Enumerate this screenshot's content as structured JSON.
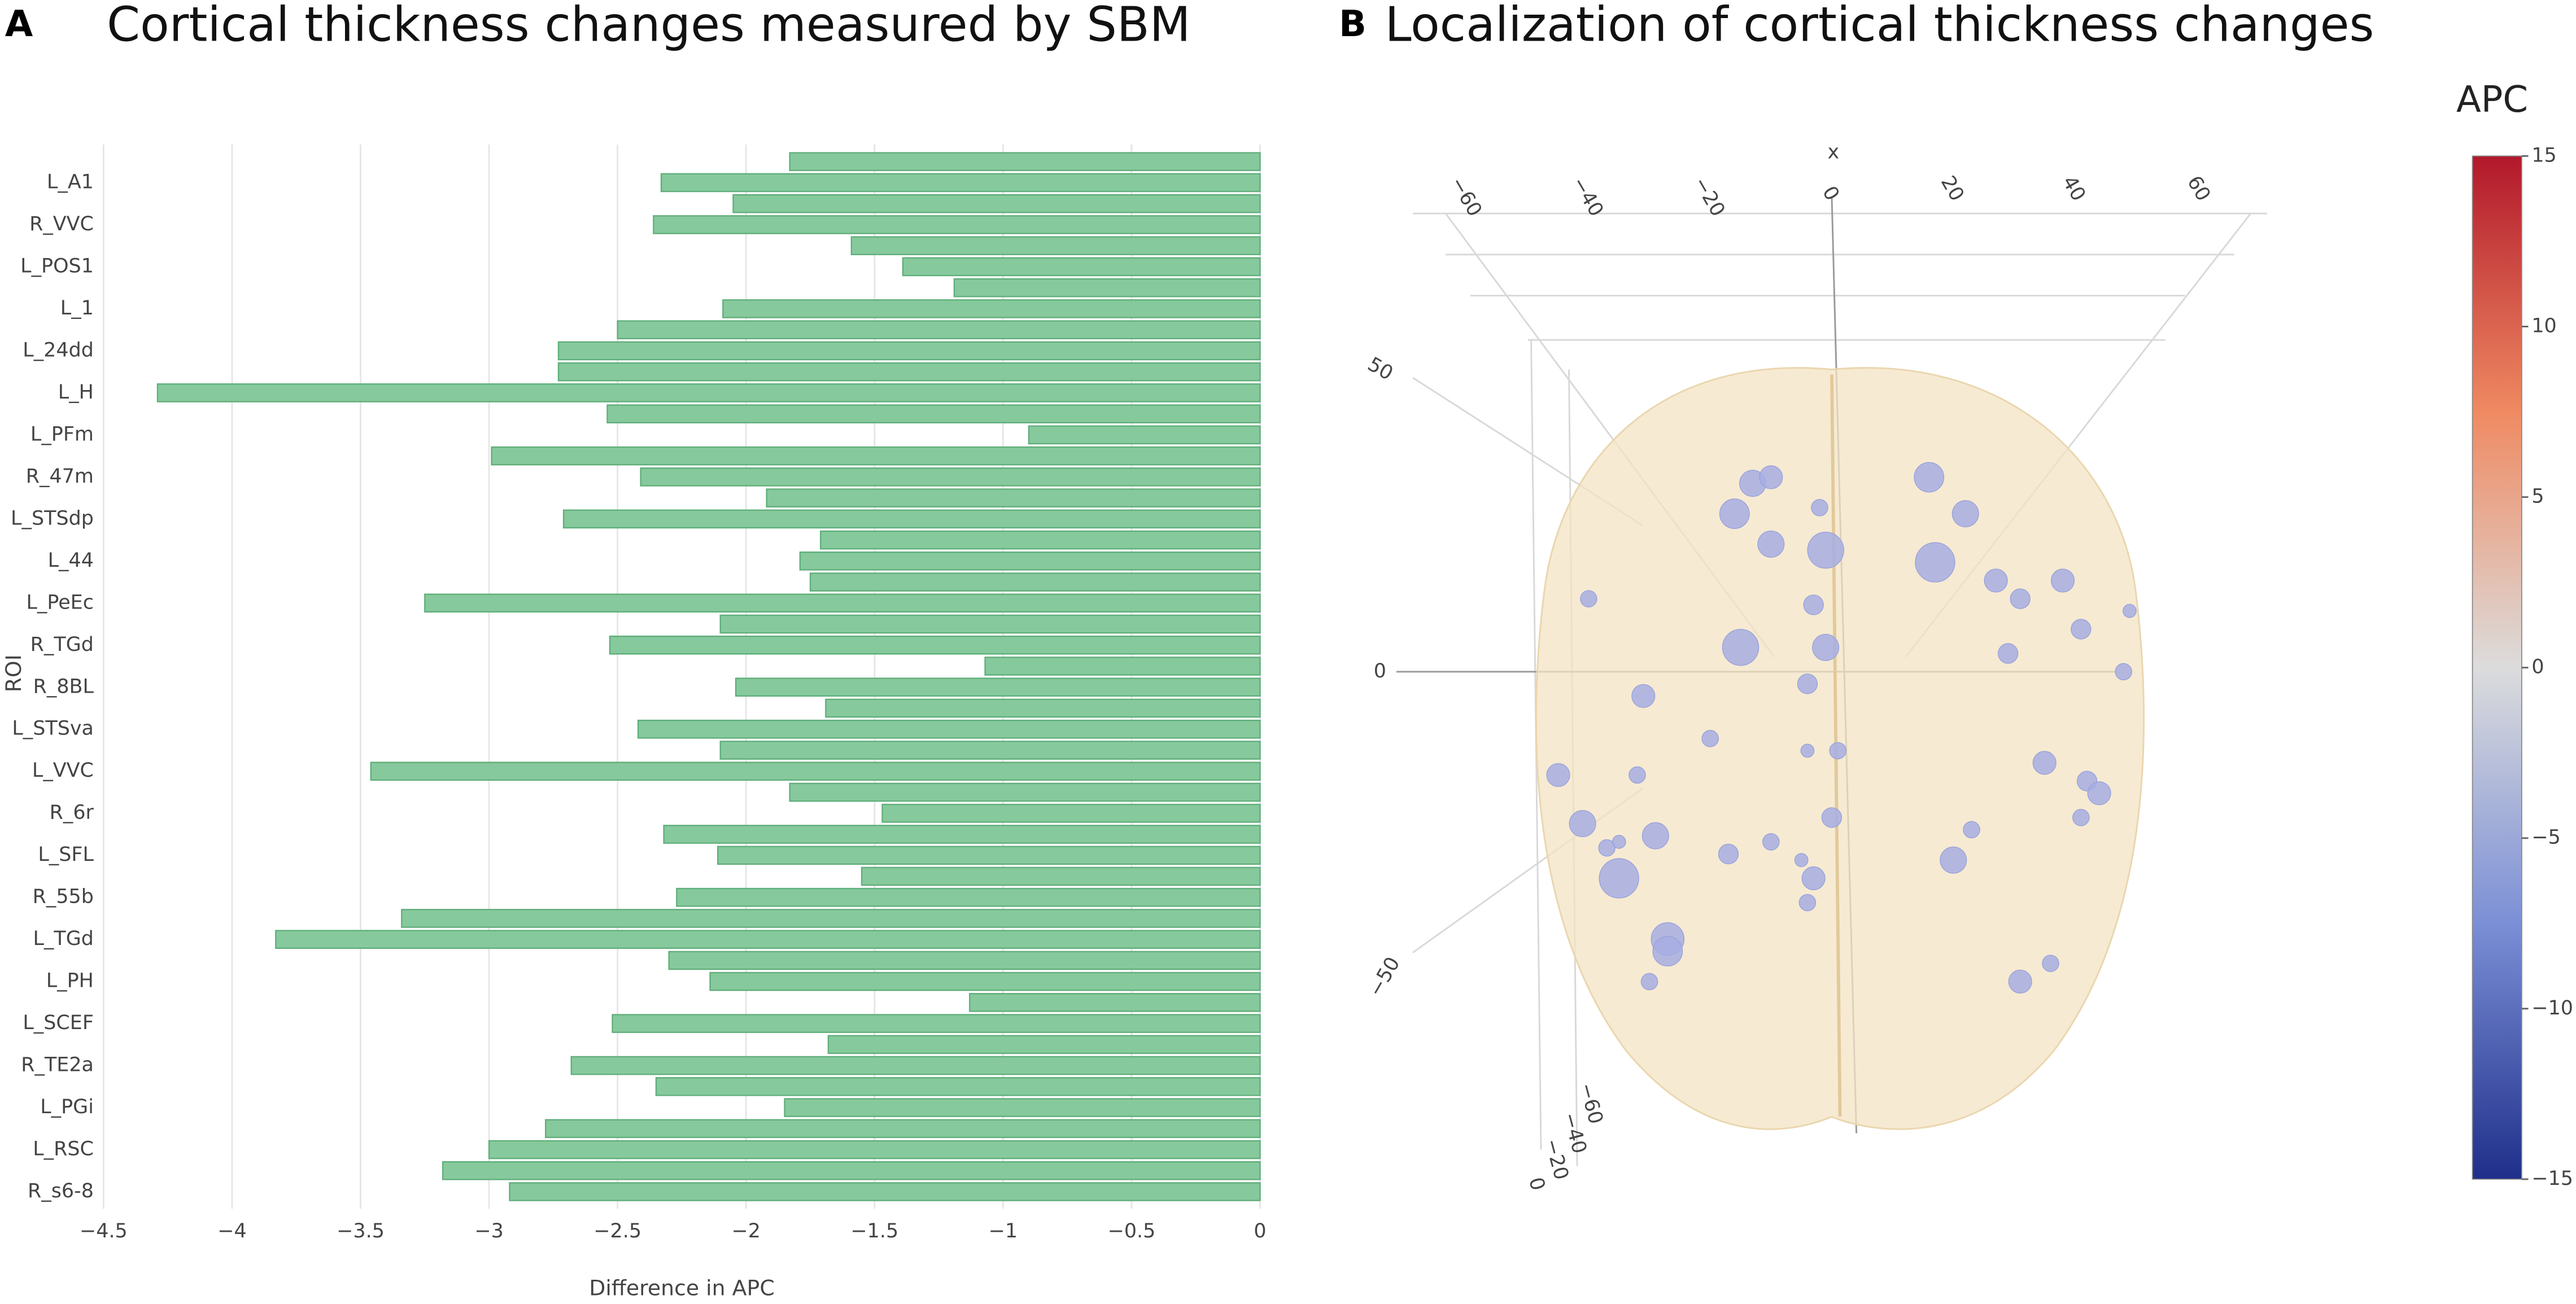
{
  "chart_data": [
    {
      "type": "bar",
      "orientation": "horizontal",
      "panel": "A",
      "title": "Cortical thickness changes measured by SBM",
      "xlabel": "Difference in APC",
      "ylabel": "ROI",
      "categories": [
        null,
        "L_A1",
        null,
        "R_VVC",
        null,
        "L_POS1",
        null,
        "L_1",
        null,
        "L_24dd",
        null,
        "L_H",
        null,
        "L_PFm",
        null,
        "R_47m",
        null,
        "L_STSdp",
        null,
        "L_44",
        null,
        "L_PeEc",
        null,
        "R_TGd",
        null,
        "R_8BL",
        null,
        "L_STSva",
        null,
        "L_VVC",
        null,
        "R_6r",
        null,
        "L_SFL",
        null,
        "R_55b",
        null,
        "L_TGd",
        null,
        "L_PH",
        null,
        "L_SCEF",
        null,
        "R_TE2a",
        null,
        "L_PGi",
        null,
        "L_RSC",
        null,
        "R_s6-8"
      ],
      "values": [
        -1.83,
        -2.33,
        -2.05,
        -2.36,
        -1.59,
        -1.39,
        -1.19,
        -2.09,
        -2.5,
        -2.73,
        -2.73,
        -4.29,
        -2.54,
        -0.9,
        -2.99,
        -2.41,
        -1.92,
        -2.71,
        -1.71,
        -1.79,
        -1.75,
        -3.25,
        -2.1,
        -2.53,
        -1.07,
        -2.04,
        -1.69,
        -2.42,
        -2.1,
        -3.46,
        -1.83,
        -1.47,
        -2.32,
        -2.11,
        -1.55,
        -2.27,
        -3.34,
        -3.83,
        -2.3,
        -2.14,
        -1.13,
        -2.52,
        -1.68,
        -2.68,
        -2.35,
        -1.85,
        -2.78,
        -3.0,
        -3.18,
        -2.92
      ],
      "color": "#86c99c",
      "xlim": [
        -4.5,
        0
      ],
      "xticks": [
        {
          "value": -4.5,
          "label": "−4.5"
        },
        {
          "value": -4,
          "label": "−4"
        },
        {
          "value": -3.5,
          "label": "−3.5"
        },
        {
          "value": -3,
          "label": "−3"
        },
        {
          "value": -2.5,
          "label": "−2.5"
        },
        {
          "value": -2,
          "label": "−2"
        },
        {
          "value": -1.5,
          "label": "−1.5"
        },
        {
          "value": -1,
          "label": "−1"
        },
        {
          "value": -0.5,
          "label": "−0.5"
        },
        0
      ],
      "grid": true
    },
    {
      "type": "scatter3d",
      "panel": "B",
      "title": "Localization of cortical thickness changes",
      "xlabel": "x",
      "xticks": [
        {
          "value": -60,
          "label": "−60"
        },
        {
          "value": -40,
          "label": "−40"
        },
        {
          "value": -20,
          "label": "−20"
        },
        0,
        20,
        40,
        60
      ],
      "yticks": [
        50,
        0,
        {
          "value": -50,
          "label": "−50"
        }
      ],
      "zticks": [
        {
          "value": -60,
          "label": "−60"
        },
        {
          "value": -40,
          "label": "−40"
        },
        {
          "value": -20,
          "label": "−20"
        },
        0
      ],
      "xlim": [
        -70,
        70
      ],
      "ylim": [
        -80,
        60
      ],
      "x": [
        -13,
        -10,
        -16,
        -2,
        16,
        22,
        -10,
        -1,
        17,
        27,
        38,
        -40,
        -3,
        31,
        -15,
        -1,
        41,
        49,
        29,
        48,
        -4,
        -31,
        -20,
        -4,
        1,
        -45,
        -32,
        35,
        42,
        44,
        41,
        0,
        -41,
        23,
        -37,
        -35,
        -29,
        -17,
        -10,
        -5,
        20,
        -3,
        -35,
        -4,
        -27,
        -27,
        36,
        -30,
        31
      ],
      "y": [
        31,
        32,
        26,
        27,
        32,
        26,
        21,
        20,
        18,
        15,
        15,
        12,
        11,
        12,
        4,
        4,
        7,
        10,
        3,
        0,
        -2,
        -4,
        -11,
        -13,
        -13,
        -17,
        -17,
        -15,
        -18,
        -20,
        -24,
        -24,
        -25,
        -26,
        -29,
        -28,
        -27,
        -30,
        -28,
        -31,
        -31,
        -34,
        -34,
        -38,
        -44,
        -46,
        -48,
        -51,
        -51
      ],
      "size": [
        8,
        7,
        9,
        5,
        9,
        8,
        8,
        11,
        12,
        7,
        7,
        5,
        6,
        6,
        11,
        8,
        6,
        4,
        6,
        5,
        6,
        7,
        5,
        4,
        5,
        7,
        5,
        7,
        6,
        7,
        5,
        6,
        8,
        5,
        5,
        4,
        8,
        6,
        5,
        4,
        8,
        7,
        12,
        5,
        10,
        9,
        5,
        5,
        7
      ],
      "color": "#a7aee3",
      "colorbar": {
        "title": "APC",
        "lim": [
          -15,
          15
        ],
        "ticks": [
          15,
          10,
          5,
          0,
          {
            "value": -5,
            "label": "−5"
          },
          {
            "value": -10,
            "label": "−10"
          },
          {
            "value": -15,
            "label": "−15"
          }
        ]
      }
    }
  ]
}
